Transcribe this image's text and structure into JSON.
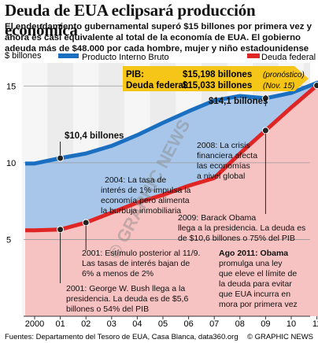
{
  "title": "Deuda de EUA eclipsará producción económica",
  "subtitle": "El endeudamiento gubernamental superó $15 billones por primera vez y ahora es casi equivalente al total de la economía de EUA. El gobierno adeuda más de $48.000 por cada hombre, mujer y niño estadounidense",
  "colors": {
    "gdp": "#1a6fc0",
    "debt": "#e02525",
    "gdp_fill": "#a8c6ea",
    "debt_fill": "#f7c2c2",
    "highlight": "#f5c518"
  },
  "chart_data": {
    "type": "line",
    "ylabel": "$ billones",
    "x": [
      "2000",
      "01",
      "02",
      "03",
      "04",
      "05",
      "06",
      "07",
      "08",
      "09",
      "10",
      "11"
    ],
    "yticks": [
      5,
      10,
      15
    ],
    "ylim": [
      0,
      16.5
    ],
    "series": [
      {
        "name": "Producto Interno Bruto",
        "values": [
          9.95,
          10.3,
          10.6,
          11.1,
          11.8,
          12.6,
          13.35,
          14.05,
          14.35,
          14.2,
          14.55,
          15.2
        ]
      },
      {
        "name": "Deuda federal",
        "values": [
          5.6,
          5.65,
          6.1,
          6.75,
          7.4,
          7.9,
          8.5,
          9.0,
          10.6,
          12.1,
          13.6,
          15.03
        ]
      }
    ],
    "callout": {
      "pib_label": "PIB:",
      "pib_value": "$15,198 billones",
      "pib_note": "(pronóstico)",
      "debt_label": "Deuda federal:",
      "debt_value": "$15,033 billones",
      "debt_note": "(Nov. 15)"
    },
    "annotations": {
      "a_104": "$10,4 billones",
      "a_141": "$14,1 billones",
      "a_2004_l1": "2004: La tasa de",
      "a_2004_l2": "interés de 1% impulsa la",
      "a_2004_l3": "economía pero alimenta",
      "a_2004_l4": "la burbuja inmobiliaria",
      "a_2008_l1": "2008: La crisis",
      "a_2008_l2": "financiera afecta",
      "a_2008_l3": "las economías",
      "a_2008_l4": "a nivel global",
      "a_obama_l1": "2009: Barack Obama",
      "a_obama_l2": "llega a la presidencia. La deuda es",
      "a_obama_l3": "de $10,6 billones o 75% del PIB",
      "a_sept_l1": "2001: Estímulo posterior al 11/9.",
      "a_sept_l2": "Las tasas de interés bajan de",
      "a_sept_l3": "6% a menos de 2%",
      "a_bush_l1": "2001: George W. Bush llega a la",
      "a_bush_l2": "presidencia. La deuda es de $5,6",
      "a_bush_l3": "billones o 54% del PIB",
      "a_ago_l1": "Ago 2011: Obama",
      "a_ago_l2": "promulga una ley",
      "a_ago_l3": "que eleve el límite de",
      "a_ago_l4": "la deuda para evitar",
      "a_ago_l5": "que EUA incurra en",
      "a_ago_l6": "mora por primera vez"
    }
  },
  "footer": {
    "source": "Fuentes: Departamento del Tesoro de EUA, Casa Blanca, data360.org",
    "credit": "© GRAPHIC NEWS"
  },
  "watermark": "© GRAPHIC NEWS"
}
